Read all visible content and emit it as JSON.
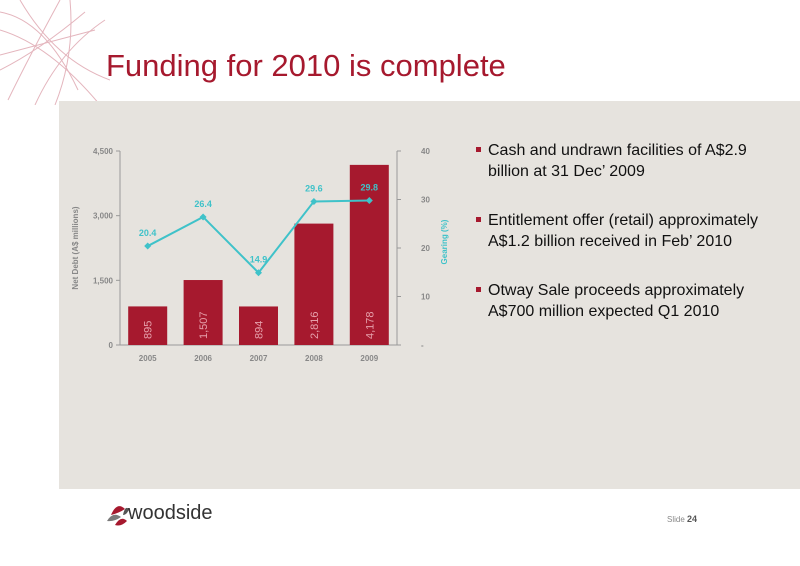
{
  "slide": {
    "title": "Funding for 2010 is complete",
    "slide_label": "Slide",
    "slide_number": "24",
    "brand": "woodside",
    "colors": {
      "accent": "#a6192e",
      "line": "#3fc2c9",
      "panel": "#e6e3de"
    }
  },
  "bullets": [
    "Cash and undrawn facilities of A$2.9 billion at 31 Dec’ 2009",
    "Entitlement offer (retail) approximately A$1.2 billion received in Feb’ 2010",
    "Otway Sale proceeds approximately A$700 million expected Q1 2010"
  ],
  "chart_data": {
    "type": "bar",
    "categories": [
      "2005",
      "2006",
      "2007",
      "2008",
      "2009"
    ],
    "series": [
      {
        "name": "",
        "type": "bar",
        "axis": "left",
        "values": [
          895,
          1507,
          894,
          2816,
          4178
        ],
        "labels": [
          "895",
          "1,507",
          "894",
          "2,816",
          "4,178"
        ]
      },
      {
        "name": "",
        "type": "line",
        "axis": "right",
        "values": [
          20.4,
          26.4,
          14.9,
          29.6,
          29.8
        ],
        "labels": [
          "20.4",
          "26.4",
          "14.9",
          "29.6",
          "29.8"
        ]
      }
    ],
    "ylabel": "Net Debt (A$ millions)",
    "y2label": "Gearing (%)",
    "ylim": [
      0,
      4500
    ],
    "y2lim": [
      0,
      40
    ],
    "yticks": [
      0,
      1500,
      3000,
      4500
    ],
    "ytick_labels": [
      "0",
      "1,500",
      "3,000",
      "4,500"
    ],
    "y2ticks": [
      0,
      10,
      20,
      30,
      40
    ],
    "y2tick_labels": [
      "-",
      "10",
      "20",
      "30",
      "40"
    ]
  }
}
